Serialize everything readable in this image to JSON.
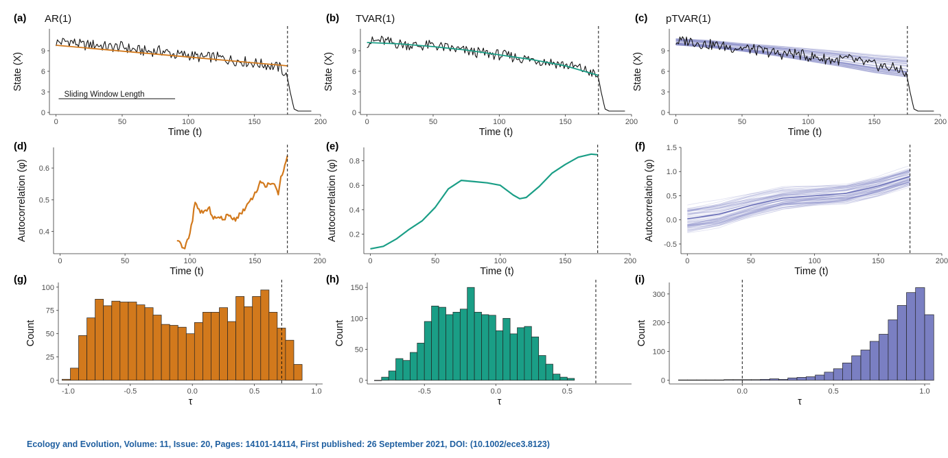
{
  "citation": "Ecology and Evolution, Volume: 11, Issue: 20, Pages: 14101-14114, First published: 26 September 2021, DOI: (10.1002/ece3.8123)",
  "colors": {
    "ar": "#d2791c",
    "tvar": "#1a9e86",
    "ptvar": "#7a7fc2",
    "state": "#111111"
  },
  "chart_data": [
    {
      "id": "a",
      "tag": "(a)",
      "title": "AR(1)",
      "type": "line",
      "xlabel": "Time (t)",
      "ylabel": "State (X)",
      "xlim": [
        -5,
        200
      ],
      "ylim": [
        -0.3,
        12.2
      ],
      "xticks": [
        0,
        50,
        100,
        150,
        200
      ],
      "yticks": [
        0,
        3,
        6,
        9
      ],
      "vline": 175,
      "annotation": "Sliding Window Length",
      "window": [
        2,
        90
      ],
      "window_y": 2,
      "series": [
        {
          "role": "state",
          "values": [
            [
              0,
              10.2
            ],
            [
              10,
              10.4
            ],
            [
              20,
              9.8
            ],
            [
              30,
              9.9
            ],
            [
              40,
              9.5
            ],
            [
              50,
              9.6
            ],
            [
              60,
              9.1
            ],
            [
              70,
              8.9
            ],
            [
              80,
              9.0
            ],
            [
              90,
              8.4
            ],
            [
              100,
              8.4
            ],
            [
              110,
              8.0
            ],
            [
              120,
              8.1
            ],
            [
              130,
              7.7
            ],
            [
              140,
              7.5
            ],
            [
              150,
              7.2
            ],
            [
              160,
              6.9
            ],
            [
              170,
              6.5
            ],
            [
              175,
              5.0
            ],
            [
              177,
              3.0
            ],
            [
              180,
              0.5
            ],
            [
              183,
              0.2
            ],
            [
              193,
              0.2
            ]
          ]
        },
        {
          "role": "fit",
          "values": [
            [
              0,
              9.8
            ],
            [
              175,
              6.8
            ]
          ]
        }
      ]
    },
    {
      "id": "b",
      "tag": "(b)",
      "title": "TVAR(1)",
      "type": "line",
      "xlabel": "Time (t)",
      "ylabel": "State (X)",
      "xlim": [
        -5,
        200
      ],
      "ylim": [
        -0.3,
        12.2
      ],
      "xticks": [
        0,
        50,
        100,
        150,
        200
      ],
      "yticks": [
        0,
        3,
        6,
        9
      ],
      "vline": 175,
      "series": [
        {
          "role": "state",
          "values": [
            [
              0,
              10.2
            ],
            [
              10,
              10.5
            ],
            [
              20,
              10.1
            ],
            [
              30,
              9.9
            ],
            [
              40,
              9.7
            ],
            [
              50,
              9.8
            ],
            [
              60,
              9.4
            ],
            [
              70,
              9.1
            ],
            [
              80,
              8.8
            ],
            [
              90,
              8.6
            ],
            [
              100,
              8.4
            ],
            [
              110,
              8.1
            ],
            [
              120,
              7.8
            ],
            [
              130,
              7.6
            ],
            [
              140,
              7.3
            ],
            [
              150,
              6.9
            ],
            [
              160,
              6.5
            ],
            [
              170,
              5.8
            ],
            [
              175,
              5.0
            ],
            [
              177,
              3.0
            ],
            [
              180,
              0.5
            ],
            [
              183,
              0.2
            ],
            [
              195,
              0.2
            ]
          ]
        },
        {
          "role": "fit",
          "values": [
            [
              0,
              10.2
            ],
            [
              25,
              10.0
            ],
            [
              50,
              9.6
            ],
            [
              75,
              9.1
            ],
            [
              100,
              8.4
            ],
            [
              125,
              7.7
            ],
            [
              150,
              6.8
            ],
            [
              175,
              5.4
            ]
          ]
        }
      ]
    },
    {
      "id": "c",
      "tag": "(c)",
      "title": "pTVAR(1)",
      "type": "line",
      "xlabel": "Time (t)",
      "ylabel": "State (X)",
      "xlim": [
        -5,
        200
      ],
      "ylim": [
        -0.3,
        12.2
      ],
      "xticks": [
        0,
        50,
        100,
        150,
        200
      ],
      "yticks": [
        0,
        3,
        6,
        9
      ],
      "vline": 175,
      "band": {
        "x": [
          0,
          25,
          50,
          75,
          100,
          125,
          150,
          175
        ],
        "center": [
          10.3,
          10.0,
          9.5,
          9.0,
          8.4,
          7.8,
          7.1,
          6.6
        ],
        "width": [
          1.0,
          1.1,
          1.2,
          1.5,
          1.9,
          2.3,
          2.7,
          3.0
        ]
      },
      "series": [
        {
          "role": "state",
          "values": [
            [
              0,
              10.3
            ],
            [
              10,
              10.5
            ],
            [
              20,
              10.0
            ],
            [
              30,
              9.8
            ],
            [
              40,
              9.5
            ],
            [
              50,
              9.4
            ],
            [
              60,
              9.1
            ],
            [
              70,
              8.8
            ],
            [
              80,
              8.5
            ],
            [
              90,
              8.6
            ],
            [
              100,
              8.2
            ],
            [
              110,
              7.9
            ],
            [
              120,
              7.6
            ],
            [
              130,
              7.8
            ],
            [
              140,
              7.3
            ],
            [
              150,
              6.9
            ],
            [
              160,
              6.6
            ],
            [
              170,
              6.3
            ],
            [
              175,
              5.0
            ],
            [
              177,
              3.0
            ],
            [
              180,
              0.5
            ],
            [
              183,
              0.2
            ],
            [
              195,
              0.2
            ]
          ]
        }
      ]
    },
    {
      "id": "d",
      "tag": "(d)",
      "title": "",
      "type": "line",
      "xlabel": "Time (t)",
      "ylabel": "Autocorrelation (φ)",
      "xlim": [
        -5,
        200
      ],
      "ylim": [
        0.33,
        0.665
      ],
      "xticks": [
        0,
        50,
        100,
        150,
        200
      ],
      "yticks": [
        0.4,
        0.5,
        0.6
      ],
      "vline": 175,
      "series": [
        {
          "role": "ar",
          "values": [
            [
              90,
              0.375
            ],
            [
              93,
              0.36
            ],
            [
              95,
              0.345
            ],
            [
              98,
              0.37
            ],
            [
              100,
              0.39
            ],
            [
              102,
              0.44
            ],
            [
              104,
              0.49
            ],
            [
              106,
              0.47
            ],
            [
              110,
              0.46
            ],
            [
              115,
              0.47
            ],
            [
              118,
              0.445
            ],
            [
              125,
              0.44
            ],
            [
              130,
              0.45
            ],
            [
              135,
              0.44
            ],
            [
              140,
              0.46
            ],
            [
              145,
              0.49
            ],
            [
              150,
              0.52
            ],
            [
              155,
              0.56
            ],
            [
              158,
              0.54
            ],
            [
              162,
              0.555
            ],
            [
              165,
              0.55
            ],
            [
              168,
              0.51
            ],
            [
              170,
              0.57
            ],
            [
              173,
              0.61
            ],
            [
              175,
              0.645
            ]
          ]
        }
      ]
    },
    {
      "id": "e",
      "tag": "(e)",
      "title": "",
      "type": "line",
      "xlabel": "Time (t)",
      "ylabel": "Autocorrelation (φ)",
      "xlim": [
        -5,
        200
      ],
      "ylim": [
        0.04,
        0.91
      ],
      "xticks": [
        0,
        50,
        100,
        150,
        200
      ],
      "yticks": [
        0.2,
        0.4,
        0.6,
        0.8
      ],
      "vline": 175,
      "series": [
        {
          "role": "tvar",
          "values": [
            [
              0,
              0.08
            ],
            [
              10,
              0.1
            ],
            [
              20,
              0.16
            ],
            [
              30,
              0.24
            ],
            [
              40,
              0.31
            ],
            [
              50,
              0.42
            ],
            [
              60,
              0.57
            ],
            [
              70,
              0.64
            ],
            [
              80,
              0.63
            ],
            [
              90,
              0.62
            ],
            [
              100,
              0.6
            ],
            [
              110,
              0.52
            ],
            [
              115,
              0.49
            ],
            [
              120,
              0.5
            ],
            [
              130,
              0.59
            ],
            [
              140,
              0.7
            ],
            [
              150,
              0.77
            ],
            [
              160,
              0.83
            ],
            [
              170,
              0.855
            ],
            [
              175,
              0.85
            ]
          ]
        }
      ]
    },
    {
      "id": "f",
      "tag": "(f)",
      "title": "",
      "type": "line",
      "xlabel": "Time (t)",
      "ylabel": "Autocorrelation (φ)",
      "xlim": [
        -5,
        200
      ],
      "ylim": [
        -0.7,
        1.5
      ],
      "xticks": [
        0,
        50,
        100,
        150,
        200
      ],
      "yticks": [
        -0.5,
        0.0,
        0.5,
        1.0,
        1.5
      ],
      "vline": 175,
      "band": {
        "x": [
          0,
          25,
          50,
          75,
          100,
          125,
          150,
          175
        ],
        "center": [
          0.02,
          0.12,
          0.3,
          0.45,
          0.5,
          0.55,
          0.7,
          0.9
        ],
        "width": [
          0.5,
          0.5,
          0.45,
          0.4,
          0.35,
          0.35,
          0.35,
          0.35
        ]
      },
      "series": [
        {
          "role": "mean",
          "values": [
            [
              0,
              0.02
            ],
            [
              25,
              0.12
            ],
            [
              50,
              0.3
            ],
            [
              75,
              0.45
            ],
            [
              100,
              0.5
            ],
            [
              125,
              0.55
            ],
            [
              150,
              0.7
            ],
            [
              175,
              0.9
            ]
          ]
        }
      ]
    },
    {
      "id": "g",
      "tag": "(g)",
      "title": "",
      "type": "bar",
      "xlabel": "τ",
      "ylabel": "Count",
      "xlim": [
        -1.08,
        1.05
      ],
      "ylim": [
        -4,
        105
      ],
      "xticks": [
        -1.0,
        -0.5,
        0.0,
        0.5,
        1.0
      ],
      "yticks": [
        0,
        25,
        50,
        75,
        100
      ],
      "bin_start": -1.05,
      "bin_width": 0.0667,
      "vline": 0.72,
      "values": [
        1,
        13,
        48,
        67,
        87,
        80,
        85,
        84,
        84,
        81,
        78,
        70,
        60,
        59,
        57,
        50,
        62,
        73,
        73,
        78,
        63,
        90,
        79,
        90,
        97,
        73,
        56,
        43,
        17
      ]
    },
    {
      "id": "h",
      "tag": "(h)",
      "title": "",
      "type": "bar",
      "xlabel": "τ",
      "ylabel": "Count",
      "xlim": [
        -0.9,
        0.95
      ],
      "ylim": [
        -6,
        158
      ],
      "xticks": [
        -0.5,
        0.0,
        0.5
      ],
      "yticks": [
        0,
        50,
        100,
        150
      ],
      "bin_start": -0.85,
      "bin_width": 0.05,
      "vline": 0.7,
      "values": [
        0,
        5,
        15,
        35,
        32,
        45,
        60,
        95,
        120,
        118,
        106,
        110,
        115,
        150,
        110,
        106,
        105,
        80,
        100,
        75,
        85,
        87,
        70,
        40,
        26,
        10,
        5,
        3
      ]
    },
    {
      "id": "i",
      "tag": "(i)",
      "title": "",
      "type": "bar",
      "xlabel": "τ",
      "ylabel": "Count",
      "xlim": [
        -0.4,
        1.03
      ],
      "ylim": [
        -13,
        340
      ],
      "xticks": [
        0.0,
        0.5,
        1.0
      ],
      "yticks": [
        0,
        100,
        200,
        300
      ],
      "bin_start": -0.35,
      "bin_width": 0.05,
      "vline": 0.0,
      "values": [
        1,
        1,
        1,
        1,
        1,
        2,
        2,
        2,
        2,
        3,
        5,
        3,
        8,
        10,
        12,
        18,
        28,
        40,
        60,
        85,
        105,
        135,
        160,
        210,
        260,
        305,
        322,
        228
      ]
    }
  ]
}
